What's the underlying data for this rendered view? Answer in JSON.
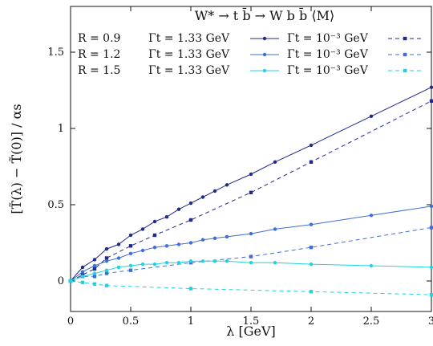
{
  "chart_data": {
    "type": "line",
    "title": "W* → t b̄ → W b b̄  ⟨M⟩",
    "xlabel": "λ [GeV]",
    "ylabel": "[T̃(λ) − T̃(0)] / αs",
    "xlim": [
      0,
      3
    ],
    "ylim": [
      -0.2,
      1.8
    ],
    "x_ticks": [
      0,
      0.5,
      1,
      1.5,
      2,
      2.5,
      3
    ],
    "x_tick_labels": [
      "0",
      "0.5",
      "1",
      "1.5",
      "2",
      "2.5",
      "3"
    ],
    "y_ticks": [
      0,
      0.5,
      1,
      1.5
    ],
    "y_tick_labels": [
      "0",
      "0.5",
      "1",
      "1.5"
    ],
    "grid": false,
    "legend_position": "top-left",
    "legend_rows": [
      {
        "r_label": "R = 0.9",
        "gamma_label": "Γt = 1.33 GeV",
        "gamma2_label": "Γt = 10⁻³ GeV",
        "color": "#1f2a8a"
      },
      {
        "r_label": "R = 1.2",
        "gamma_label": "Γt = 1.33 GeV",
        "gamma2_label": "Γt = 10⁻³ GeV",
        "color": "#3f6ed8"
      },
      {
        "r_label": "R = 1.5",
        "gamma_label": "Γt = 1.33 GeV",
        "gamma2_label": "Γt = 10⁻³ GeV",
        "color": "#1fd3e0"
      }
    ],
    "series": [
      {
        "name": "R = 0.9, Γt = 1.33 GeV",
        "color": "#1f2a8a",
        "style": "solid",
        "marker": "circle",
        "x": [
          0,
          0.1,
          0.2,
          0.3,
          0.4,
          0.5,
          0.6,
          0.7,
          0.8,
          0.9,
          1.0,
          1.1,
          1.2,
          1.3,
          1.5,
          1.7,
          2.0,
          2.5,
          3.0
        ],
        "y": [
          0,
          0.09,
          0.14,
          0.21,
          0.24,
          0.3,
          0.34,
          0.39,
          0.42,
          0.47,
          0.51,
          0.55,
          0.59,
          0.63,
          0.7,
          0.78,
          0.89,
          1.08,
          1.27
        ]
      },
      {
        "name": "R = 0.9, Γt = 10⁻³ GeV",
        "color": "#1f2a8a",
        "style": "dashed",
        "marker": "square",
        "x": [
          0,
          0.1,
          0.2,
          0.3,
          0.5,
          0.7,
          1.0,
          1.5,
          2.0,
          3.0
        ],
        "y": [
          0,
          0.04,
          0.08,
          0.15,
          0.23,
          0.3,
          0.4,
          0.58,
          0.78,
          1.18
        ]
      },
      {
        "name": "R = 1.2, Γt = 1.33 GeV",
        "color": "#3f6ed8",
        "style": "solid",
        "marker": "circle",
        "x": [
          0,
          0.1,
          0.2,
          0.3,
          0.4,
          0.5,
          0.6,
          0.7,
          0.8,
          0.9,
          1.0,
          1.1,
          1.2,
          1.3,
          1.5,
          1.7,
          2.0,
          2.5,
          3.0
        ],
        "y": [
          0,
          0.06,
          0.1,
          0.13,
          0.15,
          0.18,
          0.2,
          0.22,
          0.23,
          0.24,
          0.25,
          0.27,
          0.28,
          0.29,
          0.31,
          0.34,
          0.37,
          0.43,
          0.49
        ]
      },
      {
        "name": "R = 1.2, Γt = 10⁻³ GeV",
        "color": "#3f6ed8",
        "style": "dashed",
        "marker": "square",
        "x": [
          0,
          0.1,
          0.2,
          0.3,
          0.5,
          1.0,
          1.5,
          2.0,
          3.0
        ],
        "y": [
          0,
          0.03,
          0.03,
          0.05,
          0.07,
          0.12,
          0.16,
          0.22,
          0.35
        ]
      },
      {
        "name": "R = 1.5, Γt = 1.33 GeV",
        "color": "#1fd3e0",
        "style": "solid",
        "marker": "circle",
        "x": [
          0,
          0.1,
          0.2,
          0.3,
          0.4,
          0.5,
          0.6,
          0.7,
          0.8,
          0.9,
          1.0,
          1.1,
          1.2,
          1.3,
          1.5,
          1.7,
          2.0,
          2.5,
          3.0
        ],
        "y": [
          0,
          0.03,
          0.05,
          0.07,
          0.09,
          0.1,
          0.11,
          0.11,
          0.12,
          0.12,
          0.13,
          0.13,
          0.13,
          0.13,
          0.12,
          0.12,
          0.11,
          0.1,
          0.09
        ]
      },
      {
        "name": "R = 1.5, Γt = 10⁻³ GeV",
        "color": "#1fd3e0",
        "style": "dashed",
        "marker": "square",
        "x": [
          0,
          0.1,
          0.2,
          0.3,
          1.0,
          2.0,
          3.0
        ],
        "y": [
          0,
          -0.01,
          -0.02,
          -0.03,
          -0.05,
          -0.07,
          -0.09
        ]
      }
    ]
  }
}
